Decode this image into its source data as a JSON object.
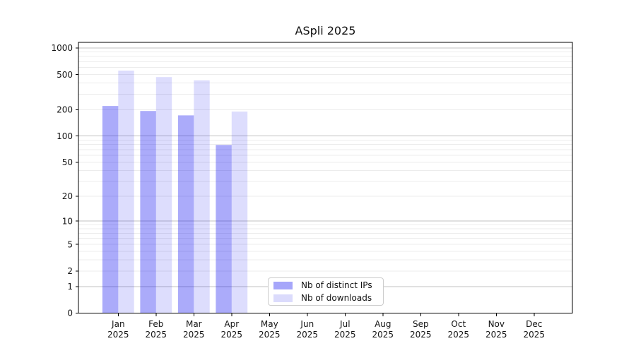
{
  "chart_data": {
    "type": "bar",
    "title": "ASpli 2025",
    "categories": [
      "Jan 2025",
      "Feb 2025",
      "Mar 2025",
      "Apr 2025",
      "May 2025",
      "Jun 2025",
      "Jul 2025",
      "Aug 2025",
      "Sep 2025",
      "Oct 2025",
      "Nov 2025",
      "Dec 2025"
    ],
    "series": [
      {
        "name": "Nb of distinct IPs",
        "color": "#a6a6fa",
        "fill": "rgba(13,13,242,0.35)",
        "values": [
          220,
          193,
          172,
          79,
          null,
          null,
          null,
          null,
          null,
          null,
          null,
          null
        ]
      },
      {
        "name": "Nb of downloads",
        "color": "#dbdbfc",
        "fill": "rgba(13,13,242,0.14)",
        "values": [
          555,
          468,
          430,
          190,
          null,
          null,
          null,
          null,
          null,
          null,
          null,
          null
        ]
      }
    ],
    "y_axis": {
      "scale": "log1p",
      "range": [
        0,
        1000
      ],
      "tick_values": [
        0,
        1,
        2,
        5,
        10,
        20,
        50,
        100,
        200,
        500,
        1000
      ],
      "tick_labels": [
        "0",
        "1",
        "2",
        "5",
        "10",
        "20",
        "50",
        "100",
        "200",
        "500",
        "1000"
      ]
    },
    "grid": {
      "major_values": [
        1,
        10,
        100,
        1000
      ],
      "minor_values": [
        2,
        3,
        4,
        5,
        6,
        7,
        8,
        9,
        20,
        30,
        40,
        50,
        60,
        70,
        80,
        90,
        200,
        300,
        400,
        500,
        600,
        700,
        800,
        900
      ]
    },
    "legend": {
      "position": "lower-center"
    },
    "colors": {
      "axis": "#000000",
      "text": "#141414",
      "grid_major": "#c0c0c0",
      "grid_minor": "#ececec",
      "background": "#ffffff"
    }
  }
}
